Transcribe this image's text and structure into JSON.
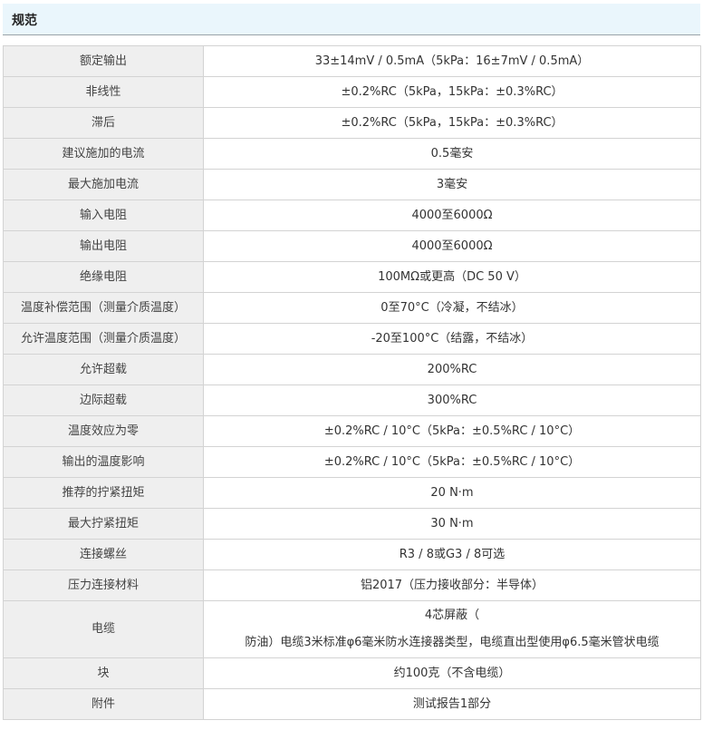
{
  "header": {
    "title": "规范"
  },
  "rows": [
    {
      "label": "额定输出",
      "value": "33±14mV / 0.5mA（5kPa：16±7mV / 0.5mA）"
    },
    {
      "label": "非线性",
      "value": "±0.2%RC（5kPa，15kPa：±0.3%RC）"
    },
    {
      "label": "滞后",
      "value": "±0.2%RC（5kPa，15kPa：±0.3%RC）"
    },
    {
      "label": "建议施加的电流",
      "value": "0.5毫安"
    },
    {
      "label": "最大施加电流",
      "value": "3毫安"
    },
    {
      "label": "输入电阻",
      "value": "4000至6000Ω"
    },
    {
      "label": "输出电阻",
      "value": "4000至6000Ω"
    },
    {
      "label": "绝缘电阻",
      "value": "100MΩ或更高（DC 50 V）"
    },
    {
      "label": "温度补偿范围（测量介质温度）",
      "value": "0至70°C（冷凝，不结冰）"
    },
    {
      "label": "允许温度范围（测量介质温度）",
      "value": "-20至100°C（结露，不结冰）"
    },
    {
      "label": "允许超载",
      "value": "200%RC"
    },
    {
      "label": "边际超载",
      "value": "300%RC"
    },
    {
      "label": "温度效应为零",
      "value": "±0.2%RC / 10°C（5kPa：±0.5%RC / 10°C）"
    },
    {
      "label": "输出的温度影响",
      "value": "±0.2%RC / 10°C（5kPa：±0.5%RC / 10°C）"
    },
    {
      "label": "推荐的拧紧扭矩",
      "value": "20 N·m"
    },
    {
      "label": "最大拧紧扭矩",
      "value": "30 N·m"
    },
    {
      "label": "连接螺丝",
      "value": "R3 / 8或G3 / 8可选"
    },
    {
      "label": "压力连接材料",
      "value": "铝2017（压力接收部分：半导体）"
    },
    {
      "label": "电缆",
      "value_line1": "4芯屏蔽（",
      "value_line2": "防油）电缆3米标准φ6毫米防水连接器类型，电缆直出型使用φ6.5毫米管状电缆"
    },
    {
      "label": "块",
      "value": "约100克（不含电缆）"
    },
    {
      "label": "附件",
      "value": "测试报告1部分"
    }
  ]
}
